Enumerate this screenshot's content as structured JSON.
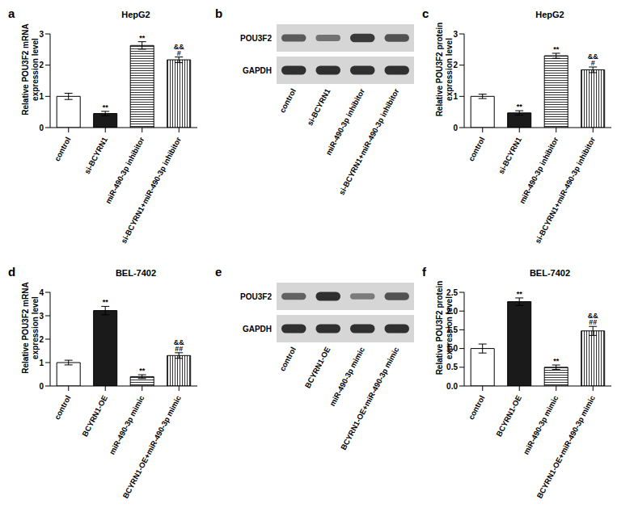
{
  "chart_data": [
    {
      "type": "bar",
      "panel": "a",
      "title": "HepG2",
      "y_label": [
        "Relative POU3F2 mRNA",
        "expression level"
      ],
      "categories": [
        "control",
        "si-BCYRN1",
        "miR-490-3p inhibitor",
        "si-BCYRN1+miR-490-3p inhibitor"
      ],
      "values": [
        1.0,
        0.45,
        2.63,
        2.17
      ],
      "errors": [
        0.1,
        0.07,
        0.12,
        0.09
      ],
      "annotations": [
        [],
        [
          "**"
        ],
        [
          "**"
        ],
        [
          "&&",
          "#"
        ]
      ],
      "colors": [
        "#ffffff",
        "#1a1a1a",
        "#ffffff",
        "#ffffff"
      ],
      "ylim": [
        0,
        3
      ],
      "yticks": [
        0,
        1,
        2,
        3
      ],
      "grid": false
    },
    {
      "type": "bar",
      "panel": "c",
      "title": "HepG2",
      "y_label": [
        "Relative POU3F2 protein",
        "expression level"
      ],
      "categories": [
        "control",
        "si-BCYRN1",
        "miR-490-3p inhibitor",
        "si-BCYRN1+miR-490-3p inhibitor"
      ],
      "values": [
        1.0,
        0.47,
        2.3,
        1.85
      ],
      "errors": [
        0.07,
        0.07,
        0.08,
        0.09
      ],
      "annotations": [
        [],
        [
          "**"
        ],
        [
          "**"
        ],
        [
          "&&",
          "#"
        ]
      ],
      "colors": [
        "#ffffff",
        "#1a1a1a",
        "#ffffff",
        "#ffffff"
      ],
      "ylim": [
        0,
        3
      ],
      "yticks": [
        0,
        1,
        2,
        3
      ],
      "grid": false
    },
    {
      "type": "bar",
      "panel": "d",
      "title": "BEL-7402",
      "y_label": [
        "Relative POU3F2 mRNA",
        "expression level"
      ],
      "categories": [
        "control",
        "BCYRN1-OE",
        "miR-490-3p mimic",
        "BCYRN1-OE+miR-490-3p mimic"
      ],
      "values": [
        1.0,
        3.22,
        0.4,
        1.3
      ],
      "errors": [
        0.1,
        0.18,
        0.08,
        0.12
      ],
      "annotations": [
        [],
        [
          "**"
        ],
        [
          "**"
        ],
        [
          "&&",
          "##"
        ]
      ],
      "colors": [
        "#ffffff",
        "#1a1a1a",
        "#ffffff",
        "#ffffff"
      ],
      "ylim": [
        0,
        4
      ],
      "yticks": [
        0,
        1,
        2,
        3,
        4
      ],
      "grid": false
    },
    {
      "type": "bar",
      "panel": "f",
      "title": "BEL-7402",
      "y_label": [
        "Relative POU3F2 protein",
        "expression level"
      ],
      "categories": [
        "control",
        "BCYRN1-OE",
        "miR-490-3p mimic",
        "BCYRN1-OE+miR-490-3p mimic"
      ],
      "values": [
        1.0,
        2.25,
        0.5,
        1.47
      ],
      "errors": [
        0.12,
        0.1,
        0.06,
        0.12
      ],
      "annotations": [
        [],
        [
          "**"
        ],
        [
          "**"
        ],
        [
          "&&",
          "##"
        ]
      ],
      "colors": [
        "#ffffff",
        "#1a1a1a",
        "#ffffff",
        "#ffffff"
      ],
      "ylim": [
        0,
        2.5
      ],
      "yticks": [
        {
          "value": 0,
          "label": "0.0"
        },
        0.5,
        {
          "value": 1,
          "label": "1.0"
        },
        1.5,
        {
          "value": 2,
          "label": "2.0"
        },
        2.5
      ],
      "grid": false
    }
  ],
  "blots": [
    {
      "panel": "b",
      "rows": [
        "POU3F2",
        "GAPDH"
      ],
      "lanes": [
        "control",
        "si-BCYRN1",
        "miR-490-3p inhibitor",
        "si-BCYRN1+miR-490-3p inhibitor"
      ]
    },
    {
      "panel": "e",
      "rows": [
        "POU3F2",
        "GAPDH"
      ],
      "lanes": [
        "control",
        "BCYRN1-OE",
        "miR-490-3p mimic",
        "BCYRN1-OE+miR-490-3p mimic"
      ]
    }
  ]
}
